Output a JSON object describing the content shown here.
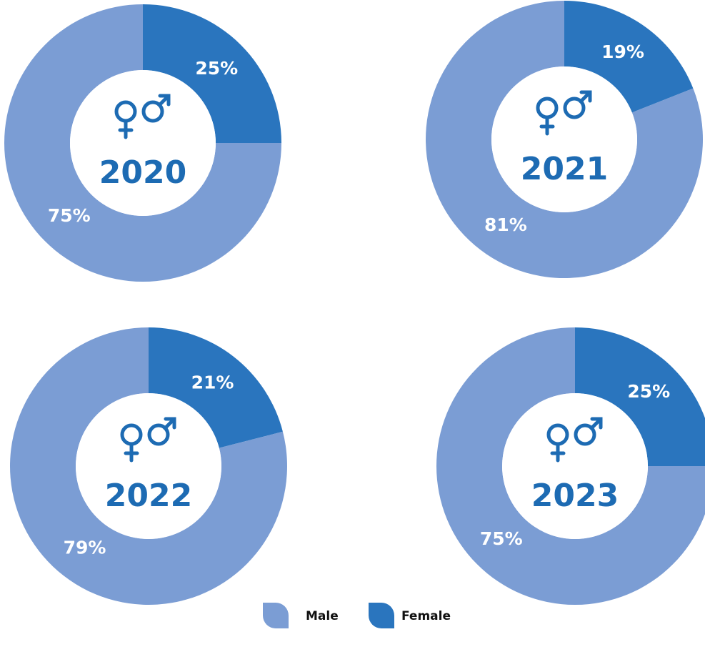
{
  "chart_data": [
    {
      "type": "donut",
      "title": "2020",
      "categories": [
        "Male",
        "Female"
      ],
      "values": [
        75,
        25
      ],
      "value_labels": [
        "75%",
        "25%"
      ],
      "colors": [
        "#7b9dd4",
        "#2a75be"
      ]
    },
    {
      "type": "donut",
      "title": "2021",
      "categories": [
        "Male",
        "Female"
      ],
      "values": [
        81,
        19
      ],
      "value_labels": [
        "81%",
        "19%"
      ],
      "colors": [
        "#7b9dd4",
        "#2a75be"
      ]
    },
    {
      "type": "donut",
      "title": "2022",
      "categories": [
        "Male",
        "Female"
      ],
      "values": [
        79,
        21
      ],
      "value_labels": [
        "79%",
        "21%"
      ],
      "colors": [
        "#7b9dd4",
        "#2a75be"
      ]
    },
    {
      "type": "donut",
      "title": "2023",
      "categories": [
        "Male",
        "Female"
      ],
      "values": [
        75,
        25
      ],
      "value_labels": [
        "75%",
        "25%"
      ],
      "colors": [
        "#7b9dd4",
        "#2a75be"
      ]
    }
  ]
}
